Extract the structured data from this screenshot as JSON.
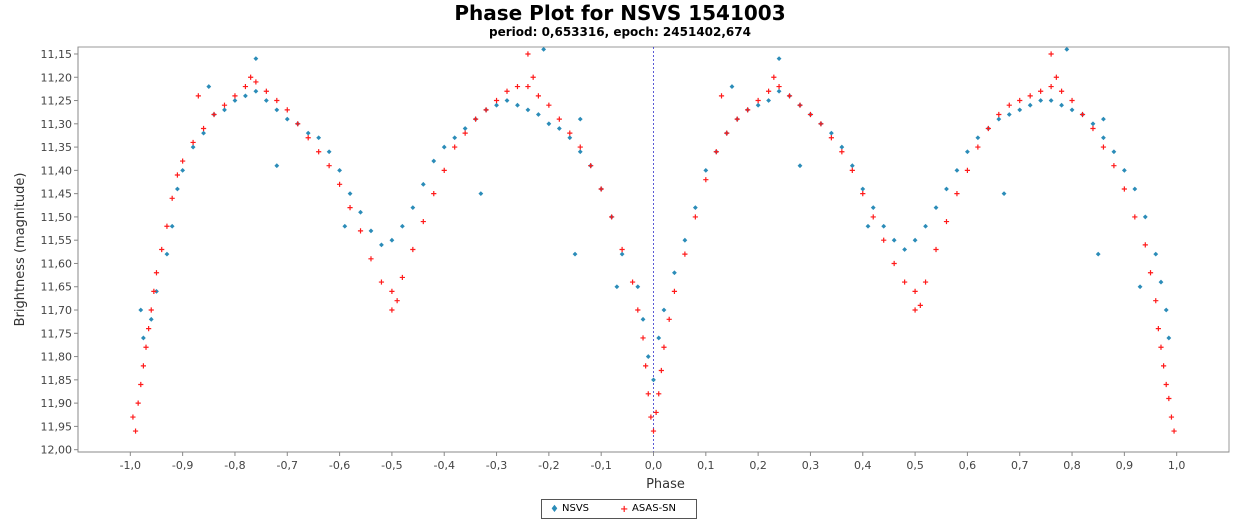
{
  "chart_data": {
    "type": "scatter",
    "title": "Phase Plot for NSVS 1541003",
    "subtitle": "period: 0,653316, epoch: 2451402,674",
    "xlabel": "Phase",
    "ylabel": "Brightness (magnitude)",
    "xlim": [
      -1.1,
      1.1
    ],
    "ylim": [
      11.135,
      12.005
    ],
    "y_inverted": true,
    "x_ticks": [
      "-1,0",
      "-0,9",
      "-0,8",
      "-0,7",
      "-0,6",
      "-0,5",
      "-0,4",
      "-0,3",
      "-0,2",
      "-0,1",
      "0,0",
      "0,1",
      "0,2",
      "0,3",
      "0,4",
      "0,5",
      "0,6",
      "0,7",
      "0,8",
      "0,9",
      "1,0"
    ],
    "x_tick_values": [
      -1.0,
      -0.9,
      -0.8,
      -0.7,
      -0.6,
      -0.5,
      -0.4,
      -0.3,
      -0.2,
      -0.1,
      0.0,
      0.1,
      0.2,
      0.3,
      0.4,
      0.5,
      0.6,
      0.7,
      0.8,
      0.9,
      1.0
    ],
    "y_ticks": [
      "11,15",
      "11,20",
      "11,25",
      "11,30",
      "11,35",
      "11,40",
      "11,45",
      "11,50",
      "11,55",
      "11,60",
      "11,65",
      "11,70",
      "11,75",
      "11,80",
      "11,85",
      "11,90",
      "11,95",
      "12,00"
    ],
    "y_tick_values": [
      11.15,
      11.2,
      11.25,
      11.3,
      11.35,
      11.4,
      11.45,
      11.5,
      11.55,
      11.6,
      11.65,
      11.7,
      11.75,
      11.8,
      11.85,
      11.9,
      11.95,
      12.0
    ],
    "vertical_marker_x": 0.0,
    "legend_position": "bottom-center",
    "series": [
      {
        "name": "NSVS",
        "color": "#2b8cb8",
        "marker": "diamond",
        "points": [
          [
            -0.98,
            11.7
          ],
          [
            -0.975,
            11.76
          ],
          [
            -0.96,
            11.72
          ],
          [
            -0.95,
            11.66
          ],
          [
            -0.93,
            11.58
          ],
          [
            -0.92,
            11.52
          ],
          [
            -0.91,
            11.44
          ],
          [
            -0.9,
            11.4
          ],
          [
            -0.88,
            11.35
          ],
          [
            -0.86,
            11.32
          ],
          [
            -0.84,
            11.28
          ],
          [
            -0.82,
            11.27
          ],
          [
            -0.8,
            11.25
          ],
          [
            -0.78,
            11.24
          ],
          [
            -0.76,
            11.23
          ],
          [
            -0.74,
            11.25
          ],
          [
            -0.72,
            11.27
          ],
          [
            -0.7,
            11.29
          ],
          [
            -0.68,
            11.3
          ],
          [
            -0.66,
            11.32
          ],
          [
            -0.64,
            11.33
          ],
          [
            -0.62,
            11.36
          ],
          [
            -0.6,
            11.4
          ],
          [
            -0.58,
            11.45
          ],
          [
            -0.56,
            11.49
          ],
          [
            -0.54,
            11.53
          ],
          [
            -0.52,
            11.56
          ],
          [
            -0.5,
            11.55
          ],
          [
            -0.48,
            11.52
          ],
          [
            -0.46,
            11.48
          ],
          [
            -0.44,
            11.43
          ],
          [
            -0.42,
            11.38
          ],
          [
            -0.4,
            11.35
          ],
          [
            -0.38,
            11.33
          ],
          [
            -0.36,
            11.31
          ],
          [
            -0.34,
            11.29
          ],
          [
            -0.32,
            11.27
          ],
          [
            -0.3,
            11.26
          ],
          [
            -0.28,
            11.25
          ],
          [
            -0.26,
            11.26
          ],
          [
            -0.24,
            11.27
          ],
          [
            -0.22,
            11.28
          ],
          [
            -0.2,
            11.3
          ],
          [
            -0.18,
            11.31
          ],
          [
            -0.16,
            11.33
          ],
          [
            -0.14,
            11.36
          ],
          [
            -0.12,
            11.39
          ],
          [
            -0.1,
            11.44
          ],
          [
            -0.08,
            11.5
          ],
          [
            -0.06,
            11.58
          ],
          [
            -0.03,
            11.65
          ],
          [
            -0.02,
            11.72
          ],
          [
            -0.01,
            11.8
          ],
          [
            0.0,
            11.85
          ],
          [
            0.01,
            11.76
          ],
          [
            0.02,
            11.7
          ],
          [
            0.04,
            11.62
          ],
          [
            0.06,
            11.55
          ],
          [
            0.08,
            11.48
          ],
          [
            0.1,
            11.4
          ],
          [
            0.12,
            11.36
          ],
          [
            0.14,
            11.32
          ],
          [
            0.16,
            11.29
          ],
          [
            0.18,
            11.27
          ],
          [
            0.2,
            11.26
          ],
          [
            0.22,
            11.25
          ],
          [
            0.24,
            11.23
          ],
          [
            0.26,
            11.24
          ],
          [
            0.28,
            11.26
          ],
          [
            0.3,
            11.28
          ],
          [
            0.32,
            11.3
          ],
          [
            0.34,
            11.32
          ],
          [
            0.36,
            11.35
          ],
          [
            0.38,
            11.39
          ],
          [
            0.4,
            11.44
          ],
          [
            0.42,
            11.48
          ],
          [
            0.44,
            11.52
          ],
          [
            0.46,
            11.55
          ],
          [
            0.48,
            11.57
          ],
          [
            0.5,
            11.55
          ],
          [
            0.52,
            11.52
          ],
          [
            0.54,
            11.48
          ],
          [
            0.56,
            11.44
          ],
          [
            0.58,
            11.4
          ],
          [
            0.6,
            11.36
          ],
          [
            0.62,
            11.33
          ],
          [
            0.64,
            11.31
          ],
          [
            0.66,
            11.29
          ],
          [
            0.68,
            11.28
          ],
          [
            0.7,
            11.27
          ],
          [
            0.72,
            11.26
          ],
          [
            0.74,
            11.25
          ],
          [
            0.76,
            11.25
          ],
          [
            0.78,
            11.26
          ],
          [
            0.8,
            11.27
          ],
          [
            0.82,
            11.28
          ],
          [
            0.84,
            11.3
          ],
          [
            0.86,
            11.33
          ],
          [
            0.88,
            11.36
          ],
          [
            0.9,
            11.4
          ],
          [
            0.92,
            11.44
          ],
          [
            0.94,
            11.5
          ],
          [
            0.96,
            11.58
          ],
          [
            0.97,
            11.64
          ],
          [
            0.98,
            11.7
          ],
          [
            0.985,
            11.76
          ],
          [
            -0.85,
            11.22
          ],
          [
            -0.76,
            11.16
          ],
          [
            -0.72,
            11.39
          ],
          [
            -0.59,
            11.52
          ],
          [
            -0.33,
            11.45
          ],
          [
            -0.21,
            11.14
          ],
          [
            -0.14,
            11.29
          ],
          [
            -0.15,
            11.58
          ],
          [
            -0.07,
            11.65
          ],
          [
            0.15,
            11.22
          ],
          [
            0.24,
            11.16
          ],
          [
            0.28,
            11.39
          ],
          [
            0.41,
            11.52
          ],
          [
            0.67,
            11.45
          ],
          [
            0.79,
            11.14
          ],
          [
            0.86,
            11.29
          ],
          [
            0.85,
            11.58
          ],
          [
            0.93,
            11.65
          ]
        ]
      },
      {
        "name": "ASAS-SN",
        "color": "#ff1a1a",
        "marker": "plus",
        "points": [
          [
            -0.995,
            11.93
          ],
          [
            -0.99,
            11.96
          ],
          [
            -0.985,
            11.9
          ],
          [
            -0.98,
            11.86
          ],
          [
            -0.975,
            11.82
          ],
          [
            -0.97,
            11.78
          ],
          [
            -0.965,
            11.74
          ],
          [
            -0.96,
            11.7
          ],
          [
            -0.955,
            11.66
          ],
          [
            -0.95,
            11.62
          ],
          [
            -0.94,
            11.57
          ],
          [
            -0.93,
            11.52
          ],
          [
            -0.92,
            11.46
          ],
          [
            -0.91,
            11.41
          ],
          [
            -0.9,
            11.38
          ],
          [
            -0.88,
            11.34
          ],
          [
            -0.86,
            11.31
          ],
          [
            -0.84,
            11.28
          ],
          [
            -0.82,
            11.26
          ],
          [
            -0.8,
            11.24
          ],
          [
            -0.78,
            11.22
          ],
          [
            -0.76,
            11.21
          ],
          [
            -0.74,
            11.23
          ],
          [
            -0.72,
            11.25
          ],
          [
            -0.7,
            11.27
          ],
          [
            -0.68,
            11.3
          ],
          [
            -0.66,
            11.33
          ],
          [
            -0.64,
            11.36
          ],
          [
            -0.62,
            11.39
          ],
          [
            -0.6,
            11.43
          ],
          [
            -0.58,
            11.48
          ],
          [
            -0.56,
            11.53
          ],
          [
            -0.54,
            11.59
          ],
          [
            -0.52,
            11.64
          ],
          [
            -0.5,
            11.66
          ],
          [
            -0.49,
            11.68
          ],
          [
            -0.48,
            11.63
          ],
          [
            -0.46,
            11.57
          ],
          [
            -0.44,
            11.51
          ],
          [
            -0.42,
            11.45
          ],
          [
            -0.4,
            11.4
          ],
          [
            -0.38,
            11.35
          ],
          [
            -0.36,
            11.32
          ],
          [
            -0.34,
            11.29
          ],
          [
            -0.32,
            11.27
          ],
          [
            -0.3,
            11.25
          ],
          [
            -0.28,
            11.23
          ],
          [
            -0.26,
            11.22
          ],
          [
            -0.24,
            11.22
          ],
          [
            -0.22,
            11.24
          ],
          [
            -0.2,
            11.26
          ],
          [
            -0.18,
            11.29
          ],
          [
            -0.16,
            11.32
          ],
          [
            -0.14,
            11.35
          ],
          [
            -0.12,
            11.39
          ],
          [
            -0.1,
            11.44
          ],
          [
            -0.08,
            11.5
          ],
          [
            -0.06,
            11.57
          ],
          [
            -0.04,
            11.64
          ],
          [
            -0.03,
            11.7
          ],
          [
            -0.02,
            11.76
          ],
          [
            -0.015,
            11.82
          ],
          [
            -0.01,
            11.88
          ],
          [
            -0.005,
            11.93
          ],
          [
            0.0,
            11.96
          ],
          [
            0.005,
            11.92
          ],
          [
            0.01,
            11.88
          ],
          [
            0.015,
            11.83
          ],
          [
            0.02,
            11.78
          ],
          [
            0.03,
            11.72
          ],
          [
            0.04,
            11.66
          ],
          [
            0.06,
            11.58
          ],
          [
            0.08,
            11.5
          ],
          [
            0.1,
            11.42
          ],
          [
            0.12,
            11.36
          ],
          [
            0.14,
            11.32
          ],
          [
            0.16,
            11.29
          ],
          [
            0.18,
            11.27
          ],
          [
            0.2,
            11.25
          ],
          [
            0.22,
            11.23
          ],
          [
            0.24,
            11.22
          ],
          [
            0.26,
            11.24
          ],
          [
            0.28,
            11.26
          ],
          [
            0.3,
            11.28
          ],
          [
            0.32,
            11.3
          ],
          [
            0.34,
            11.33
          ],
          [
            0.36,
            11.36
          ],
          [
            0.38,
            11.4
          ],
          [
            0.4,
            11.45
          ],
          [
            0.42,
            11.5
          ],
          [
            0.44,
            11.55
          ],
          [
            0.46,
            11.6
          ],
          [
            0.48,
            11.64
          ],
          [
            0.5,
            11.66
          ],
          [
            0.51,
            11.69
          ],
          [
            0.52,
            11.64
          ],
          [
            0.54,
            11.57
          ],
          [
            0.56,
            11.51
          ],
          [
            0.58,
            11.45
          ],
          [
            0.6,
            11.4
          ],
          [
            0.62,
            11.35
          ],
          [
            0.64,
            11.31
          ],
          [
            0.66,
            11.28
          ],
          [
            0.68,
            11.26
          ],
          [
            0.7,
            11.25
          ],
          [
            0.72,
            11.24
          ],
          [
            0.74,
            11.23
          ],
          [
            0.76,
            11.22
          ],
          [
            0.78,
            11.23
          ],
          [
            0.8,
            11.25
          ],
          [
            0.82,
            11.28
          ],
          [
            0.84,
            11.31
          ],
          [
            0.86,
            11.35
          ],
          [
            0.88,
            11.39
          ],
          [
            0.9,
            11.44
          ],
          [
            0.92,
            11.5
          ],
          [
            0.94,
            11.56
          ],
          [
            0.95,
            11.62
          ],
          [
            0.96,
            11.68
          ],
          [
            0.965,
            11.74
          ],
          [
            0.97,
            11.78
          ],
          [
            0.975,
            11.82
          ],
          [
            0.98,
            11.86
          ],
          [
            0.985,
            11.89
          ],
          [
            0.99,
            11.93
          ],
          [
            0.995,
            11.96
          ],
          [
            -0.77,
            11.2
          ],
          [
            -0.23,
            11.2
          ],
          [
            0.23,
            11.2
          ],
          [
            0.77,
            11.2
          ],
          [
            -0.24,
            11.15
          ],
          [
            0.76,
            11.15
          ],
          [
            -0.5,
            11.7
          ],
          [
            0.5,
            11.7
          ],
          [
            -0.87,
            11.24
          ],
          [
            0.13,
            11.24
          ]
        ]
      }
    ]
  }
}
